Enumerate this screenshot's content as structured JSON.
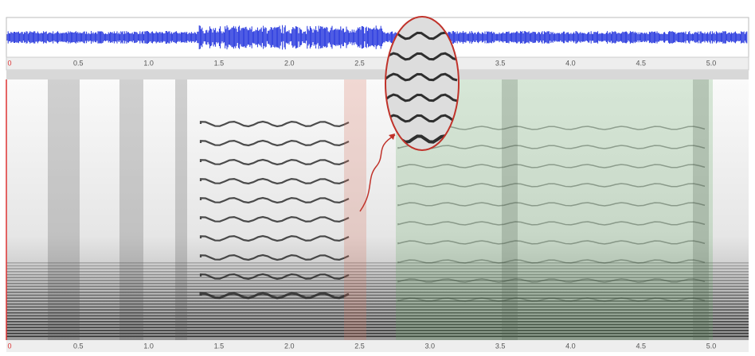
{
  "top_axis": {
    "ticks": [
      "0",
      "0.5",
      "1.0",
      "1.5",
      "2.0",
      "2.5",
      "3.5",
      "4.0",
      "4.5",
      "5.0"
    ]
  },
  "bottom_axis": {
    "ticks": [
      "0",
      "0.5",
      "1.0",
      "1.5",
      "2.0",
      "2.5",
      "3.0",
      "3.5",
      "4.0",
      "4.5",
      "5.0"
    ]
  }
}
